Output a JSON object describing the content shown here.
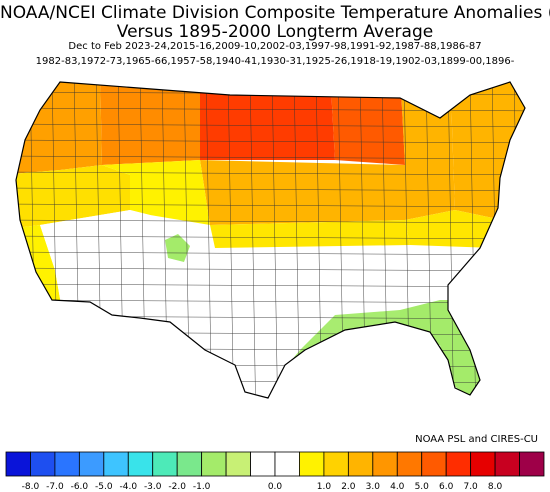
{
  "header": {
    "title_line1": "NOAA/NCEI Climate Division Composite Temperature Anomalies (F)",
    "title_line2": "Versus 1895-2000 Longterm Average",
    "subtitle_line1": "Dec to Feb  2023-24,2015-16,2009-10,2002-03,1997-98,1991-92,1987-88,1986-87",
    "subtitle_line2": "1982-83,1972-73,1965-66,1957-58,1940-41,1930-31,1925-26,1918-19,1902-03,1899-00,1896-"
  },
  "credit": "NOAA PSL and CIRES-CU",
  "legend": {
    "colors": [
      "#0a14d9",
      "#1e4ff0",
      "#2a75ff",
      "#3c9bff",
      "#3ec4ff",
      "#39e3ea",
      "#4deab8",
      "#7ae88c",
      "#a4eb6a",
      "#c8f075",
      "#ffffff",
      "#ffffff",
      "#fff200",
      "#ffd200",
      "#ffb400",
      "#ff9600",
      "#ff7800",
      "#ff5a00",
      "#ff2d00",
      "#e60000",
      "#c80020",
      "#9e0048"
    ],
    "labels": [
      "-8.0",
      "-7.0",
      "-6.0",
      "-5.0",
      "-4.0",
      "-3.0",
      "-2.0",
      "-1.0",
      "0.0",
      "1.0",
      "2.0",
      "3.0",
      "4.0",
      "5.0",
      "6.0",
      "7.0",
      "8.0"
    ]
  },
  "map": {
    "regions": [
      {
        "name": "northern-plains",
        "value": 5.2,
        "color": "#ff3c00"
      },
      {
        "name": "upper-midwest",
        "value": 4.8,
        "color": "#ff5a00"
      },
      {
        "name": "montana-northern-rockies",
        "value": 3.6,
        "color": "#ff8c00"
      },
      {
        "name": "pacific-northwest",
        "value": 3.0,
        "color": "#ffa000"
      },
      {
        "name": "great-lakes-ohio-valley",
        "value": 2.6,
        "color": "#ffb400"
      },
      {
        "name": "central-plains",
        "value": 2.4,
        "color": "#ffb400"
      },
      {
        "name": "northeast",
        "value": 2.5,
        "color": "#ffb400"
      },
      {
        "name": "northern-california-great-basin-north",
        "value": 1.4,
        "color": "#ffe000"
      },
      {
        "name": "wyoming-colorado-north",
        "value": 1.2,
        "color": "#fff200"
      },
      {
        "name": "southern-california-coast",
        "value": 1.2,
        "color": "#fff200"
      },
      {
        "name": "kansas-missouri-south",
        "value": 1.3,
        "color": "#ffe600"
      },
      {
        "name": "mid-atlantic",
        "value": 1.3,
        "color": "#ffe600"
      },
      {
        "name": "southwest-desert",
        "value": 0.2,
        "color": "#ffffff"
      },
      {
        "name": "southern-plains-texas",
        "value": 0.1,
        "color": "#ffffff"
      },
      {
        "name": "tennessee-valley-carolinas",
        "value": 0.2,
        "color": "#ffffff"
      },
      {
        "name": "gulf-coast",
        "value": -0.6,
        "color": "#a8ec70"
      },
      {
        "name": "florida-georgia",
        "value": -0.7,
        "color": "#a4eb6a"
      },
      {
        "name": "utah-central",
        "value": -0.5,
        "color": "#a4eb6a"
      }
    ]
  }
}
